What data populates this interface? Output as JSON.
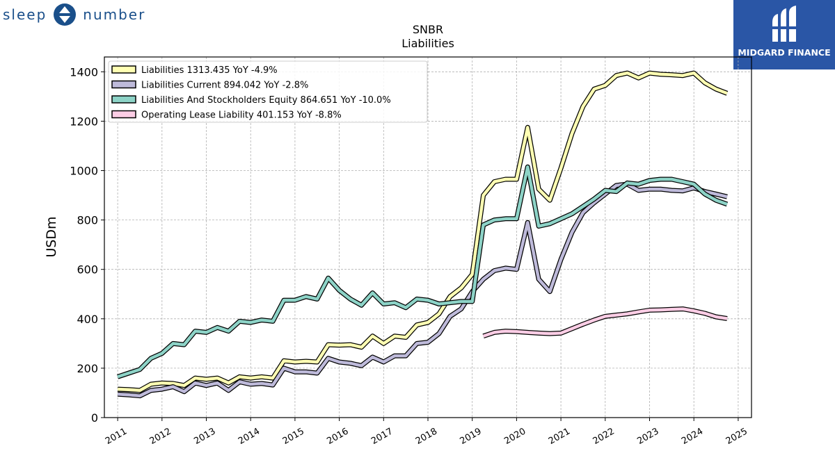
{
  "brand": {
    "left_word": "sleep",
    "right_word": "number",
    "badge_label": "MIDGARD FINANCE",
    "badge_color": "#2a56a6",
    "brand_color": "#1a4f8a"
  },
  "chart_data": {
    "type": "line",
    "title": "SNBR",
    "subtitle": "Liabilities",
    "ylabel": "USDm",
    "xlabel": "",
    "xlim": [
      2010.7,
      2025.3
    ],
    "ylim": [
      0,
      1460
    ],
    "yticks": [
      0,
      200,
      400,
      600,
      800,
      1000,
      1200,
      1400
    ],
    "xticks": [
      "2011",
      "2012",
      "2013",
      "2014",
      "2015",
      "2016",
      "2017",
      "2018",
      "2019",
      "2020",
      "2021",
      "2022",
      "2023",
      "2024",
      "2025"
    ],
    "grid": true,
    "legend_position": "top-left",
    "series": [
      {
        "name": "Liabilities",
        "legend": "Liabilities  1313.435 YoY -4.9%",
        "color": "#ffffb3",
        "x": [
          2011.0,
          2011.25,
          2011.5,
          2011.75,
          2012.0,
          2012.25,
          2012.5,
          2012.75,
          2013.0,
          2013.25,
          2013.5,
          2013.75,
          2014.0,
          2014.25,
          2014.5,
          2014.75,
          2015.0,
          2015.25,
          2015.5,
          2015.75,
          2016.0,
          2016.25,
          2016.5,
          2016.75,
          2017.0,
          2017.25,
          2017.5,
          2017.75,
          2018.0,
          2018.25,
          2018.5,
          2018.75,
          2019.0,
          2019.25,
          2019.5,
          2019.75,
          2020.0,
          2020.25,
          2020.5,
          2020.75,
          2021.0,
          2021.25,
          2021.5,
          2021.75,
          2022.0,
          2022.25,
          2022.5,
          2022.75,
          2023.0,
          2023.25,
          2023.5,
          2023.75,
          2024.0,
          2024.25,
          2024.5,
          2024.75
        ],
        "y": [
          115,
          113,
          110,
          135,
          140,
          138,
          130,
          160,
          155,
          160,
          140,
          165,
          160,
          165,
          160,
          230,
          225,
          228,
          225,
          295,
          293,
          295,
          285,
          330,
          300,
          330,
          325,
          375,
          385,
          420,
          490,
          525,
          580,
          900,
          955,
          965,
          965,
          1175,
          925,
          880,
          1010,
          1150,
          1260,
          1330,
          1345,
          1385,
          1395,
          1375,
          1395,
          1390,
          1388,
          1385,
          1395,
          1355,
          1330,
          1313
        ]
      },
      {
        "name": "Liabilities Current",
        "legend": "Liabilities Current  894.042 YoY -2.8%",
        "color": "#bebada",
        "x": [
          2011.0,
          2011.25,
          2011.5,
          2011.75,
          2012.0,
          2012.25,
          2012.5,
          2012.75,
          2013.0,
          2013.25,
          2013.5,
          2013.75,
          2014.0,
          2014.25,
          2014.5,
          2014.75,
          2015.0,
          2015.25,
          2015.5,
          2015.75,
          2016.0,
          2016.25,
          2016.5,
          2016.75,
          2017.0,
          2017.25,
          2017.5,
          2017.75,
          2018.0,
          2018.25,
          2018.5,
          2018.75,
          2019.0,
          2019.25,
          2019.5,
          2019.75,
          2020.0,
          2020.25,
          2020.5,
          2020.75,
          2021.0,
          2021.25,
          2021.5,
          2021.75,
          2022.0,
          2022.25,
          2022.5,
          2022.75,
          2023.0,
          2023.25,
          2023.5,
          2023.75,
          2024.0,
          2024.25,
          2024.5,
          2024.75
        ],
        "y": [
          95,
          92,
          88,
          110,
          115,
          125,
          105,
          140,
          130,
          140,
          110,
          145,
          135,
          138,
          132,
          200,
          185,
          185,
          180,
          240,
          225,
          220,
          210,
          245,
          225,
          250,
          250,
          300,
          305,
          340,
          410,
          440,
          510,
          560,
          595,
          605,
          600,
          790,
          560,
          510,
          640,
          750,
          830,
          870,
          905,
          940,
          945,
          920,
          925,
          925,
          920,
          918,
          930,
          915,
          905,
          894
        ]
      },
      {
        "name": "Liabilities And Stockholders Equity",
        "legend": "Liabilities And Stockholders Equity  864.651 YoY -10.0%",
        "color": "#8dd3c7",
        "x": [
          2011.0,
          2011.25,
          2011.5,
          2011.75,
          2012.0,
          2012.25,
          2012.5,
          2012.75,
          2013.0,
          2013.25,
          2013.5,
          2013.75,
          2014.0,
          2014.25,
          2014.5,
          2014.75,
          2015.0,
          2015.25,
          2015.5,
          2015.75,
          2016.0,
          2016.25,
          2016.5,
          2016.75,
          2017.0,
          2017.25,
          2017.5,
          2017.75,
          2018.0,
          2018.25,
          2018.5,
          2018.75,
          2019.0,
          2019.25,
          2019.5,
          2019.75,
          2020.0,
          2020.25,
          2020.5,
          2020.75,
          2021.0,
          2021.25,
          2021.5,
          2021.75,
          2022.0,
          2022.25,
          2022.5,
          2022.75,
          2023.0,
          2023.25,
          2023.5,
          2023.75,
          2024.0,
          2024.25,
          2024.5,
          2024.75
        ],
        "y": [
          165,
          180,
          195,
          240,
          260,
          300,
          295,
          350,
          345,
          365,
          350,
          390,
          385,
          395,
          390,
          475,
          475,
          490,
          480,
          565,
          515,
          480,
          455,
          505,
          460,
          465,
          445,
          480,
          475,
          460,
          465,
          470,
          470,
          780,
          800,
          805,
          805,
          1015,
          775,
          785,
          805,
          825,
          855,
          885,
          920,
          915,
          950,
          945,
          960,
          965,
          965,
          955,
          945,
          905,
          880,
          864
        ]
      },
      {
        "name": "Operating Lease Liability",
        "legend": "Operating Lease Liability  401.153 YoY -8.8%",
        "color": "#fccde5",
        "x": [
          2019.25,
          2019.5,
          2019.75,
          2020.0,
          2020.25,
          2020.5,
          2020.75,
          2021.0,
          2021.25,
          2021.5,
          2021.75,
          2022.0,
          2022.25,
          2022.5,
          2022.75,
          2023.0,
          2023.25,
          2023.5,
          2023.75,
          2024.0,
          2024.25,
          2024.5,
          2024.75
        ],
        "y": [
          330,
          345,
          350,
          348,
          345,
          342,
          340,
          342,
          360,
          378,
          395,
          410,
          415,
          420,
          428,
          435,
          436,
          438,
          440,
          432,
          422,
          408,
          401
        ]
      }
    ]
  }
}
